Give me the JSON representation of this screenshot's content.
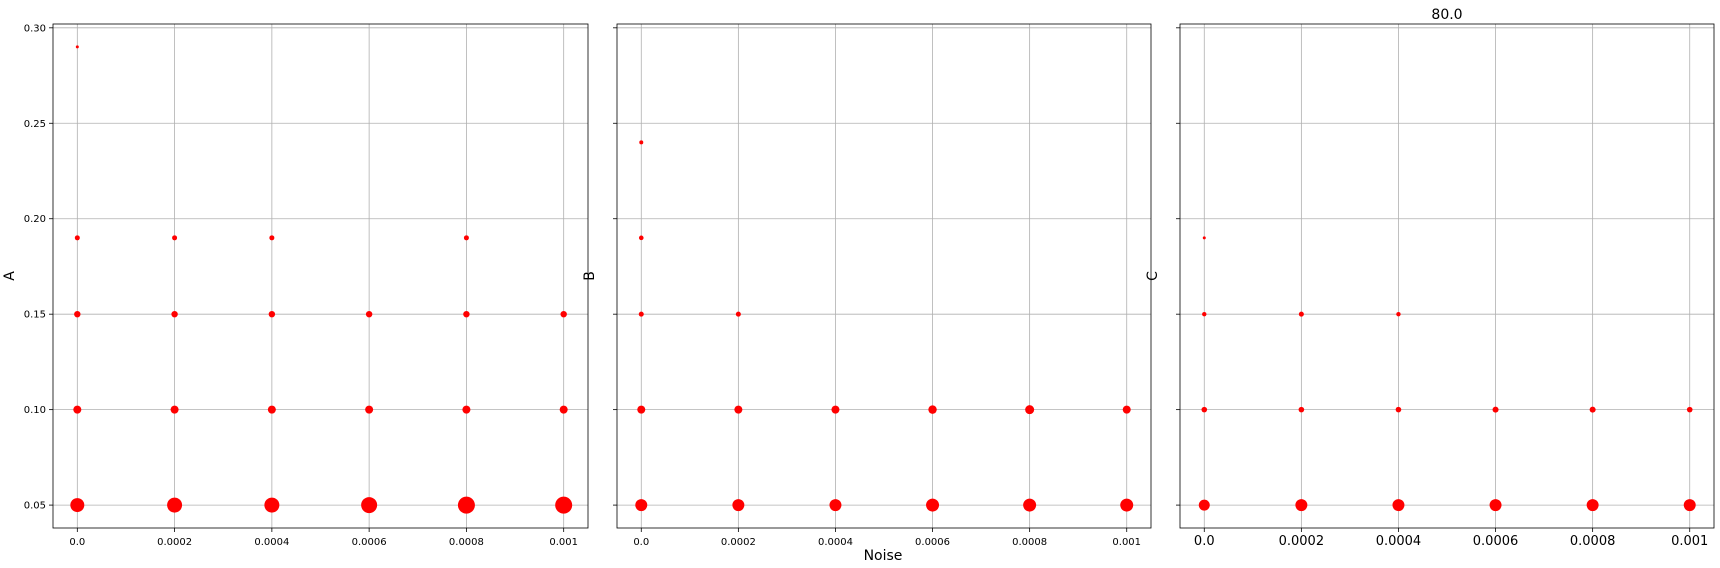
{
  "figure": {
    "title": "80.0",
    "xlabel": "Noise",
    "marker_color": "#ff0000",
    "grid_color": "#b0b0b0"
  },
  "chart_data": [
    {
      "type": "scatter",
      "ylabel": "A",
      "xlabel": "",
      "grid": true,
      "x_ticks": [
        "0.0",
        "0.0002",
        "0.0004",
        "0.0006",
        "0.0008",
        "0.001"
      ],
      "y_ticks": [
        "0.05",
        "0.10",
        "0.15",
        "0.20",
        "0.25",
        "0.30"
      ],
      "y_tick_values": [
        0.05,
        0.1,
        0.15,
        0.2,
        0.25,
        0.3
      ],
      "xlim": [
        -5e-05,
        0.00105
      ],
      "ylim": [
        0.038,
        0.302
      ],
      "points": [
        {
          "x": 0.0,
          "y": 0.29,
          "size": 1.5
        },
        {
          "x": 0.0,
          "y": 0.19,
          "size": 2.5
        },
        {
          "x": 0.0,
          "y": 0.15,
          "size": 3.2
        },
        {
          "x": 0.0,
          "y": 0.1,
          "size": 4
        },
        {
          "x": 0.0,
          "y": 0.05,
          "size": 7
        },
        {
          "x": 0.0002,
          "y": 0.19,
          "size": 2.5
        },
        {
          "x": 0.0002,
          "y": 0.15,
          "size": 3.2
        },
        {
          "x": 0.0002,
          "y": 0.1,
          "size": 4
        },
        {
          "x": 0.0002,
          "y": 0.05,
          "size": 7.5
        },
        {
          "x": 0.0004,
          "y": 0.19,
          "size": 2.5
        },
        {
          "x": 0.0004,
          "y": 0.15,
          "size": 3.2
        },
        {
          "x": 0.0004,
          "y": 0.1,
          "size": 4
        },
        {
          "x": 0.0004,
          "y": 0.05,
          "size": 7.5
        },
        {
          "x": 0.0006,
          "y": 0.15,
          "size": 3.2
        },
        {
          "x": 0.0006,
          "y": 0.1,
          "size": 4
        },
        {
          "x": 0.0006,
          "y": 0.05,
          "size": 8
        },
        {
          "x": 0.0008,
          "y": 0.19,
          "size": 2.5
        },
        {
          "x": 0.0008,
          "y": 0.15,
          "size": 3.2
        },
        {
          "x": 0.0008,
          "y": 0.1,
          "size": 4
        },
        {
          "x": 0.0008,
          "y": 0.05,
          "size": 8.5
        },
        {
          "x": 0.001,
          "y": 0.15,
          "size": 3.2
        },
        {
          "x": 0.001,
          "y": 0.1,
          "size": 4
        },
        {
          "x": 0.001,
          "y": 0.05,
          "size": 8.5
        }
      ]
    },
    {
      "type": "scatter",
      "ylabel": "B",
      "xlabel": "Noise",
      "grid": true,
      "x_ticks": [
        "0.0",
        "0.0002",
        "0.0004",
        "0.0006",
        "0.0008",
        "0.001"
      ],
      "y_ticks": [],
      "y_tick_values": [
        0.05,
        0.1,
        0.15,
        0.2,
        0.25,
        0.3
      ],
      "xlim": [
        -5e-05,
        0.00105
      ],
      "ylim": [
        0.038,
        0.302
      ],
      "points": [
        {
          "x": 0.0,
          "y": 0.24,
          "size": 2
        },
        {
          "x": 0.0,
          "y": 0.19,
          "size": 2.3
        },
        {
          "x": 0.0,
          "y": 0.15,
          "size": 2.5
        },
        {
          "x": 0.0,
          "y": 0.1,
          "size": 4
        },
        {
          "x": 0.0,
          "y": 0.05,
          "size": 6
        },
        {
          "x": 0.0002,
          "y": 0.15,
          "size": 2.5
        },
        {
          "x": 0.0002,
          "y": 0.1,
          "size": 4
        },
        {
          "x": 0.0002,
          "y": 0.05,
          "size": 6
        },
        {
          "x": 0.0004,
          "y": 0.1,
          "size": 4
        },
        {
          "x": 0.0004,
          "y": 0.05,
          "size": 6
        },
        {
          "x": 0.0006,
          "y": 0.1,
          "size": 4.2
        },
        {
          "x": 0.0006,
          "y": 0.05,
          "size": 6.5
        },
        {
          "x": 0.0008,
          "y": 0.1,
          "size": 4.5
        },
        {
          "x": 0.0008,
          "y": 0.05,
          "size": 6.5
        },
        {
          "x": 0.001,
          "y": 0.1,
          "size": 4
        },
        {
          "x": 0.001,
          "y": 0.05,
          "size": 6.5
        }
      ]
    },
    {
      "type": "scatter",
      "ylabel": "C",
      "xlabel": "",
      "grid": true,
      "x_ticks": [
        "0.0",
        "0.0002",
        "0.0004",
        "0.0006",
        "0.0008",
        "0.001"
      ],
      "y_ticks": [],
      "y_tick_values": [
        0.05,
        0.1,
        0.15,
        0.2,
        0.25,
        0.3
      ],
      "xlim": [
        -5e-05,
        0.00105
      ],
      "ylim": [
        0.038,
        0.302
      ],
      "points": [
        {
          "x": 0.0,
          "y": 0.19,
          "size": 1.5
        },
        {
          "x": 0.0,
          "y": 0.15,
          "size": 2.2
        },
        {
          "x": 0.0,
          "y": 0.1,
          "size": 2.8
        },
        {
          "x": 0.0,
          "y": 0.05,
          "size": 5.5
        },
        {
          "x": 0.0002,
          "y": 0.15,
          "size": 2.5
        },
        {
          "x": 0.0002,
          "y": 0.1,
          "size": 2.8
        },
        {
          "x": 0.0002,
          "y": 0.05,
          "size": 6
        },
        {
          "x": 0.0004,
          "y": 0.15,
          "size": 2.2
        },
        {
          "x": 0.0004,
          "y": 0.1,
          "size": 2.8
        },
        {
          "x": 0.0004,
          "y": 0.05,
          "size": 6
        },
        {
          "x": 0.0006,
          "y": 0.1,
          "size": 3
        },
        {
          "x": 0.0006,
          "y": 0.05,
          "size": 6
        },
        {
          "x": 0.0008,
          "y": 0.1,
          "size": 3
        },
        {
          "x": 0.0008,
          "y": 0.05,
          "size": 6
        },
        {
          "x": 0.001,
          "y": 0.1,
          "size": 2.8
        },
        {
          "x": 0.001,
          "y": 0.05,
          "size": 6
        }
      ]
    }
  ]
}
